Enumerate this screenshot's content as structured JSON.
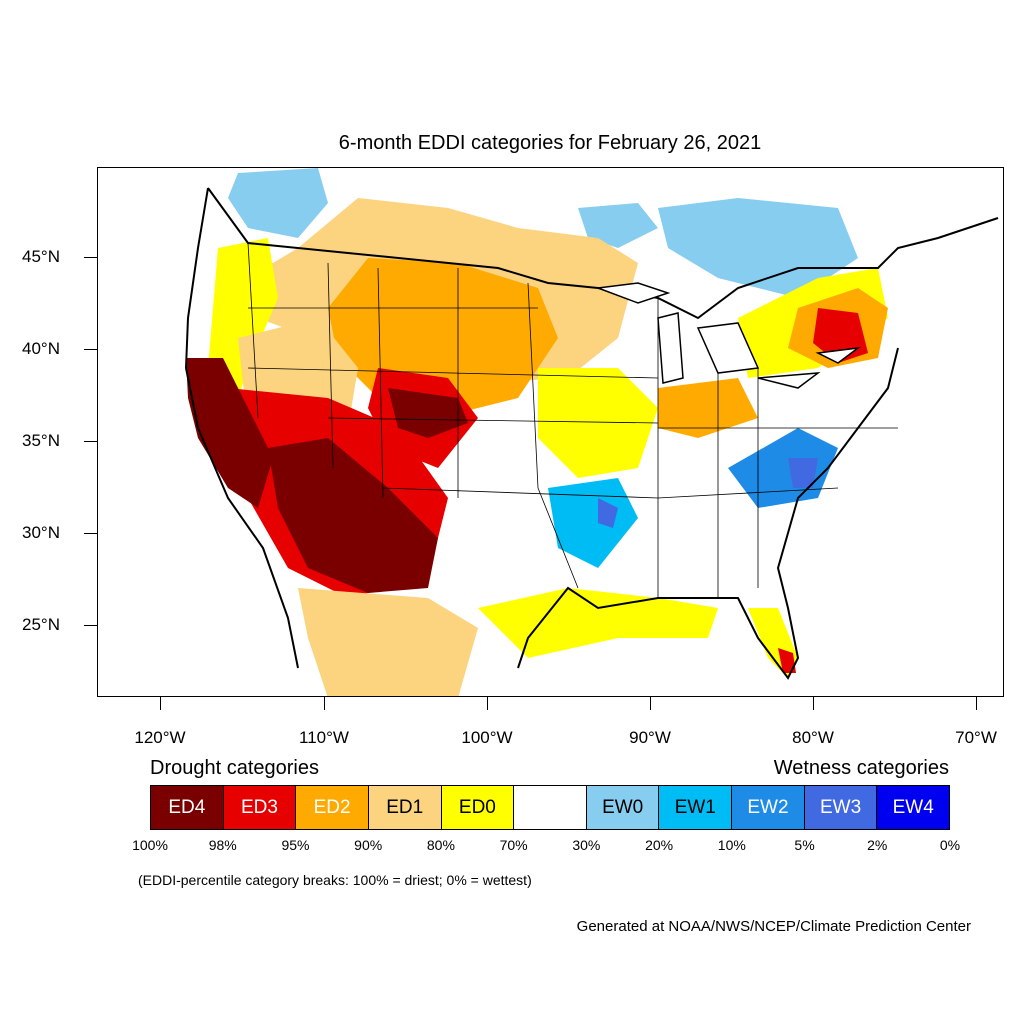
{
  "title": "6-month EDDI categories for February 26, 2021",
  "map": {
    "lat_labels": [
      "45°N",
      "40°N",
      "35°N",
      "30°N",
      "25°N"
    ],
    "lon_labels": [
      "120°W",
      "110°W",
      "100°W",
      "90°W",
      "80°W",
      "70°W"
    ]
  },
  "legend": {
    "drought_heading": "Drought categories",
    "wetness_heading": "Wetness categories",
    "cells": [
      {
        "label": "ED4",
        "color": "#7a0000",
        "text_color": "#ffffff"
      },
      {
        "label": "ED3",
        "color": "#e60000",
        "text_color": "#ffffff"
      },
      {
        "label": "ED2",
        "color": "#ffaa00",
        "text_color": "#ffffff"
      },
      {
        "label": "ED1",
        "color": "#fcd37f",
        "text_color": "#000000"
      },
      {
        "label": "ED0",
        "color": "#ffff00",
        "text_color": "#000000"
      },
      {
        "label": "",
        "color": "#ffffff",
        "text_color": "#000000"
      },
      {
        "label": "EW0",
        "color": "#87cdf0",
        "text_color": "#000000"
      },
      {
        "label": "EW1",
        "color": "#00bcf5",
        "text_color": "#000000"
      },
      {
        "label": "EW2",
        "color": "#1e8ce6",
        "text_color": "#ffffff"
      },
      {
        "label": "EW3",
        "color": "#4169e1",
        "text_color": "#ffffff"
      },
      {
        "label": "EW4",
        "color": "#0000f0",
        "text_color": "#ffffff"
      }
    ],
    "percentiles": [
      "100%",
      "98%",
      "95%",
      "90%",
      "80%",
      "70%",
      "30%",
      "20%",
      "10%",
      "5%",
      "2%",
      "0%"
    ]
  },
  "note": "(EDDI-percentile category breaks: 100% = driest; 0% = wettest)",
  "credit": "Generated at NOAA/NWS/NCEP/Climate Prediction Center"
}
